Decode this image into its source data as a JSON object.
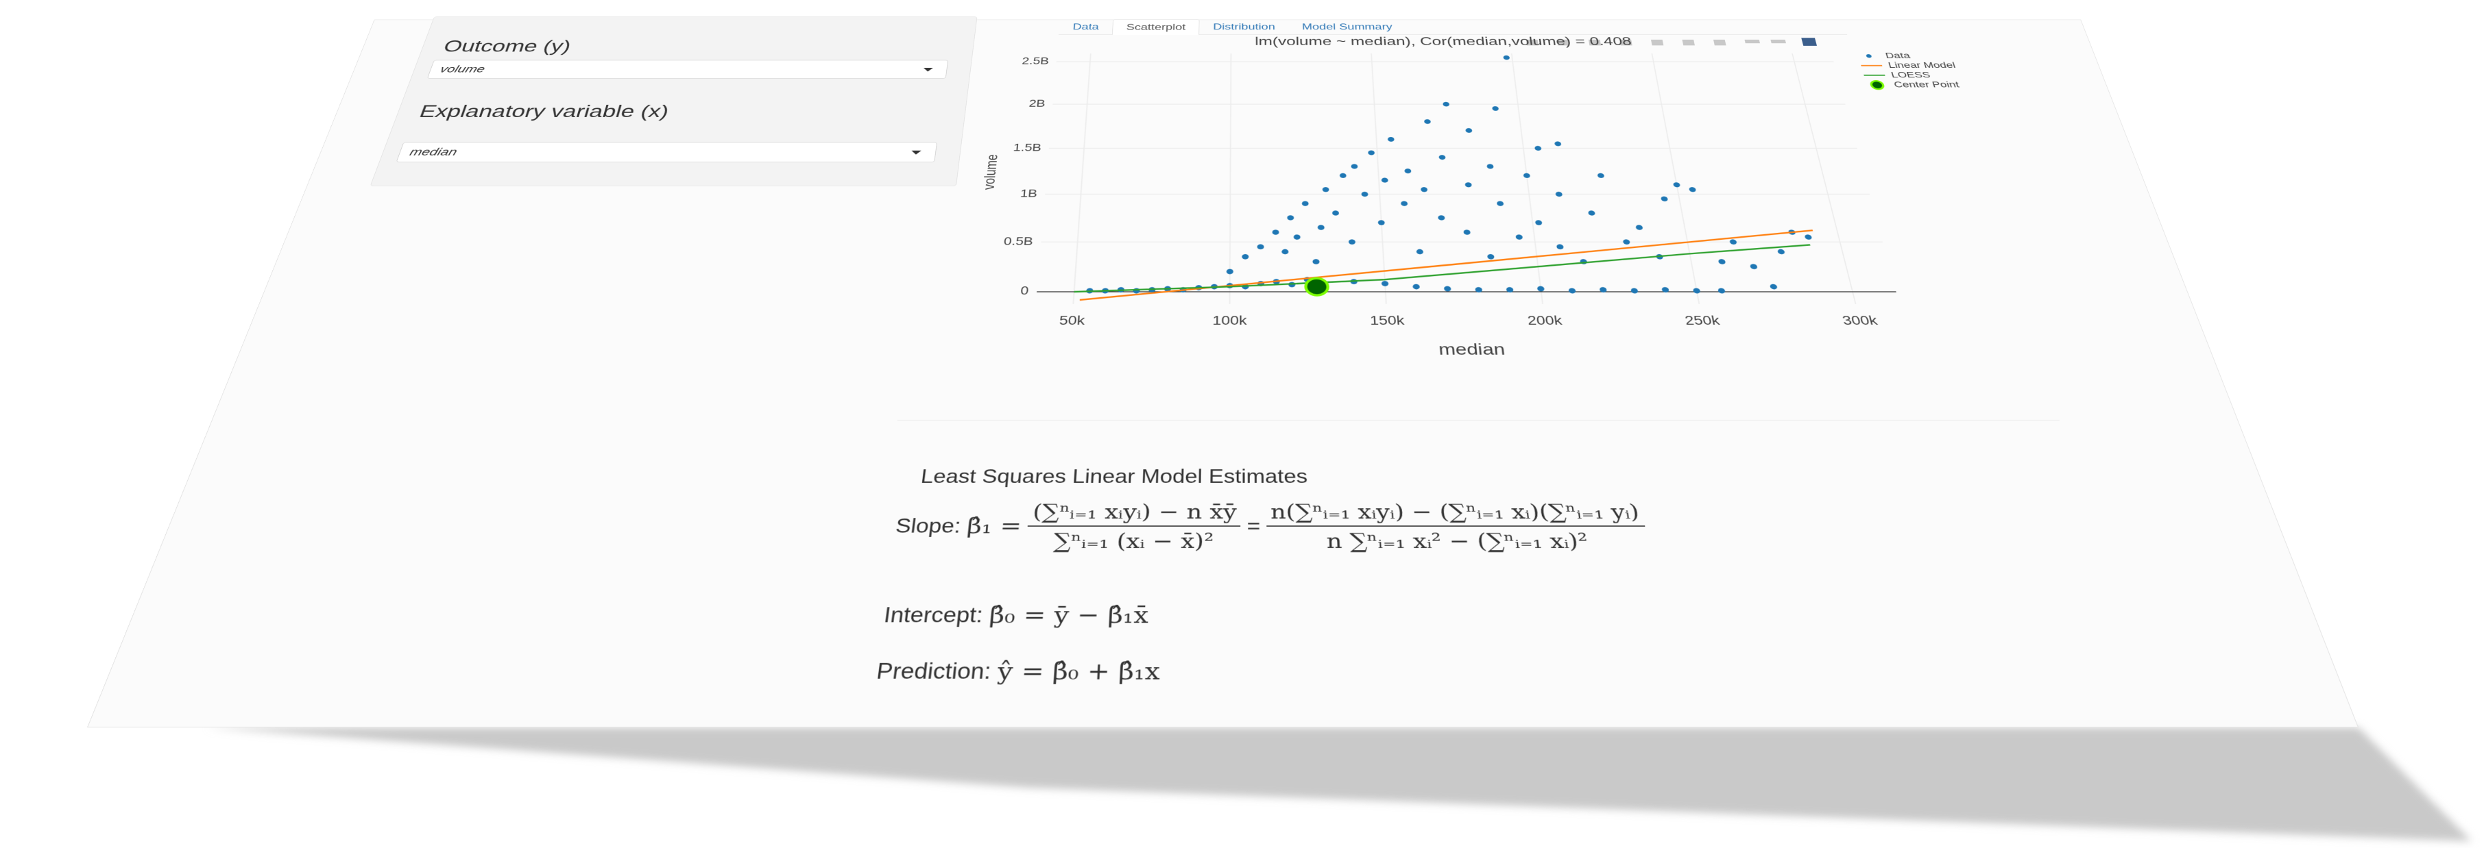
{
  "sidebar": {
    "outcome_label": "Outcome (y)",
    "outcome_value": "volume",
    "explanatory_label": "Explanatory variable (x)",
    "explanatory_value": "median"
  },
  "tabs": [
    "Data",
    "Scatterplot",
    "Distribution",
    "Model Summary"
  ],
  "chart_data": {
    "type": "scatter",
    "title": "lm(volume ~ median), Cor(median,volume) = 0.408",
    "x_label": "median",
    "y_label": "volume",
    "xlim": [
      38000,
      314000
    ],
    "ylim": [
      -120000000,
      2600000000
    ],
    "xticks": [
      {
        "value": 50000,
        "label": "50k"
      },
      {
        "value": 100000,
        "label": "100k"
      },
      {
        "value": 150000,
        "label": "150k"
      },
      {
        "value": 200000,
        "label": "200k"
      },
      {
        "value": 250000,
        "label": "250k"
      },
      {
        "value": 300000,
        "label": "300k"
      }
    ],
    "yticks": [
      0,
      {
        "value": 500000000,
        "label": "0.5B"
      },
      {
        "value": 1000000000,
        "label": "1B"
      },
      {
        "value": 1500000000,
        "label": "1.5B"
      },
      {
        "value": 2000000000,
        "label": "2B"
      },
      {
        "value": 2500000000,
        "label": "2.5B"
      }
    ],
    "grid": true,
    "legend_position": "top-right",
    "series": [
      {
        "name": "Data",
        "type": "scatter",
        "color": "#1f77b4",
        "x": [
          55000,
          60000,
          65000,
          70000,
          75000,
          80000,
          85000,
          90000,
          95000,
          100000,
          105000,
          110000,
          115000,
          120000,
          125000,
          130000,
          140000,
          150000,
          160000,
          170000,
          180000,
          190000,
          200000,
          210000,
          220000,
          230000,
          240000,
          250000,
          258000,
          275000,
          100000,
          105000,
          110000,
          115000,
          118000,
          120000,
          122000,
          125000,
          128000,
          130000,
          132000,
          135000,
          138000,
          140000,
          142000,
          145000,
          148000,
          150000,
          152000,
          155000,
          158000,
          160000,
          162000,
          165000,
          168000,
          170000,
          172000,
          175000,
          178000,
          180000,
          182000,
          185000,
          188000,
          190000,
          192000,
          195000,
          198000,
          200000,
          202000,
          205000,
          208000,
          210000,
          212000,
          215000,
          220000,
          225000,
          230000,
          235000,
          240000,
          245000,
          250000,
          255000,
          260000,
          265000,
          270000,
          280000,
          285000,
          290000
        ],
        "values": [
          10000000,
          10000000,
          20000000,
          10000000,
          20000000,
          30000000,
          20000000,
          40000000,
          50000000,
          60000000,
          50000000,
          80000000,
          100000000,
          70000000,
          120000000,
          90000000,
          100000000,
          80000000,
          50000000,
          30000000,
          20000000,
          20000000,
          30000000,
          10000000,
          20000000,
          10000000,
          20000000,
          10000000,
          10000000,
          50000000,
          200000000,
          350000000,
          450000000,
          600000000,
          400000000,
          750000000,
          550000000,
          900000000,
          300000000,
          650000000,
          1050000000,
          800000000,
          1200000000,
          500000000,
          1300000000,
          1000000000,
          1450000000,
          700000000,
          1150000000,
          1600000000,
          900000000,
          1250000000,
          400000000,
          1050000000,
          1800000000,
          750000000,
          1400000000,
          2000000000,
          600000000,
          1100000000,
          1700000000,
          350000000,
          1300000000,
          900000000,
          1950000000,
          550000000,
          2550000000,
          1200000000,
          700000000,
          1500000000,
          450000000,
          1000000000,
          1550000000,
          300000000,
          800000000,
          1200000000,
          500000000,
          650000000,
          350000000,
          950000000,
          1100000000,
          1050000000,
          300000000,
          500000000,
          250000000,
          400000000,
          600000000,
          550000000
        ]
      },
      {
        "name": "Linear Model",
        "type": "line",
        "color": "#ff7f0e",
        "x": [
          52000,
          292000
        ],
        "values": [
          -80000000,
          620000000
        ]
      },
      {
        "name": "LOESS",
        "type": "line",
        "color": "#2ca02c",
        "x": [
          50000,
          100000,
          150000,
          200000,
          250000,
          290000
        ],
        "values": [
          0,
          50000000,
          120000000,
          250000000,
          380000000,
          470000000
        ]
      },
      {
        "name": "Center Point",
        "type": "point",
        "color": "#006400",
        "x": [
          128000
        ],
        "values": [
          50000000
        ]
      }
    ]
  },
  "estimates": {
    "title": "Least Squares Linear Model Estimates",
    "slope": {
      "label": "Slope:",
      "lhs": "β̂₁ =",
      "frac1_num": "(∑ⁿᵢ₌₁ xᵢyᵢ) − n x̄ȳ",
      "frac1_den": "∑ⁿᵢ₌₁ (xᵢ − x̄)²",
      "equals": "=",
      "frac2_num": "n(∑ⁿᵢ₌₁ xᵢyᵢ) − (∑ⁿᵢ₌₁ xᵢ)(∑ⁿᵢ₌₁ yᵢ)",
      "frac2_den": "n ∑ⁿᵢ₌₁ xᵢ² − (∑ⁿᵢ₌₁ xᵢ)²"
    },
    "intercept": {
      "label": "Intercept:",
      "formula": "β̂₀ = ȳ − β̂₁x̄"
    },
    "prediction": {
      "label": "Prediction:",
      "formula": "ŷ = β̂₀ + β̂₁x"
    }
  }
}
